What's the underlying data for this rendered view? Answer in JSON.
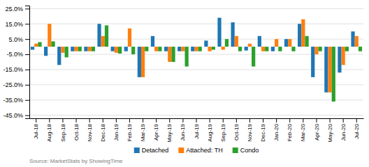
{
  "chart_data": {
    "type": "bar",
    "categories": [
      "Jul-18",
      "Aug-18",
      "Sep-18",
      "Oct-18",
      "Nov-18",
      "Dec-18",
      "Jan-19",
      "Feb-19",
      "Mar-19",
      "Apr-19",
      "May-19",
      "Jun-19",
      "Jul-19",
      "Aug-19",
      "Sep-19",
      "Oct-19",
      "Nov-19",
      "Dec-19",
      "Jan-20",
      "Feb-20",
      "Mar-20",
      "Apr-20",
      "May-20",
      "Jun-20",
      "Jul-20"
    ],
    "series": [
      {
        "name": "Detached",
        "values": [
          -2.0,
          -6.0,
          -12.0,
          -3.0,
          -3.0,
          15.0,
          -3.0,
          -3.0,
          -20.0,
          7.0,
          -3.0,
          -3.0,
          -3.0,
          4.0,
          19.0,
          16.0,
          -2.5,
          7.0,
          -3.0,
          5.0,
          15.0,
          -20.0,
          -30.0,
          -17.0,
          10.0
        ]
      },
      {
        "name": "Attached: TH",
        "values": [
          2.0,
          15.0,
          -4.0,
          -3.0,
          -3.0,
          7.0,
          -4.0,
          12.0,
          -20.0,
          -3.0,
          -10.0,
          -3.0,
          -3.0,
          -3.0,
          -2.0,
          7.0,
          2.0,
          -3.0,
          5.0,
          5.0,
          18.0,
          -5.0,
          -30.0,
          -12.0,
          7.0
        ]
      },
      {
        "name": "Condo",
        "values": [
          3.0,
          3.5,
          -7.0,
          -3.0,
          -3.0,
          14.0,
          -4.5,
          -5.0,
          -3.0,
          -3.0,
          -10.0,
          -13.0,
          -3.0,
          -2.0,
          5.0,
          -3.0,
          -13.0,
          -3.0,
          -3.0,
          -3.0,
          7.0,
          -3.0,
          -36.0,
          -3.0,
          -3.0
        ]
      }
    ],
    "ylim": [
      -47.0,
      27.0
    ],
    "yticks": [
      {
        "value": -45.0,
        "label": "-45.0%"
      },
      {
        "value": -35.0,
        "label": "-35.0%"
      },
      {
        "value": -25.0,
        "label": "-25.0%"
      },
      {
        "value": -15.0,
        "label": "-15.0%"
      },
      {
        "value": -5.0,
        "label": "-5.0%"
      },
      {
        "value": 5.0,
        "label": "5.0%"
      },
      {
        "value": 15.0,
        "label": "15.0%"
      },
      {
        "value": 25.0,
        "label": "25.0%"
      }
    ],
    "grid": true,
    "legend": "bottom",
    "annotations": [
      "Source: MarketStats by ShowingTime"
    ]
  }
}
